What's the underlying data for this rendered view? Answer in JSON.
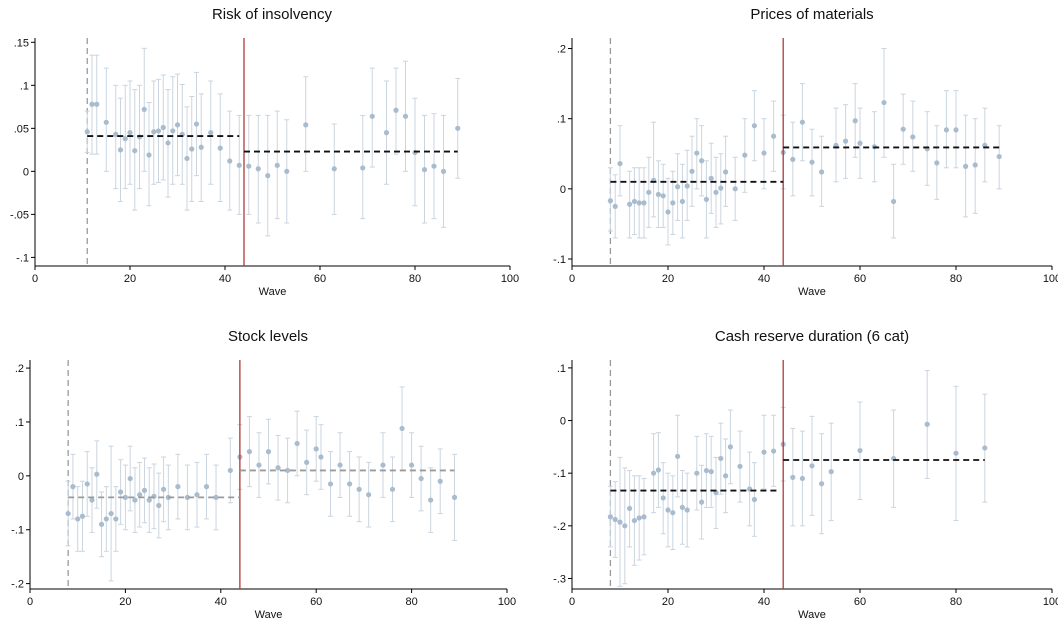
{
  "colors": {
    "point": "#a9bcce",
    "errorbar": "#cad5df",
    "vline_treat": "#b03a3a",
    "vline_start": "#9a9a9a",
    "mean_dark": "#111111",
    "mean_grey": "#9a9a9a"
  },
  "chart_data": [
    {
      "type": "scatter",
      "title": "Risk of insolvency",
      "xlabel": "Wave",
      "xlim": [
        0,
        100
      ],
      "ylim": [
        -0.11,
        0.155
      ],
      "xticks": [
        0,
        20,
        40,
        60,
        80,
        100
      ],
      "xtick_labels": [
        "0",
        "20",
        "40",
        "60",
        "80",
        "100"
      ],
      "yticks": [
        -0.1,
        -0.05,
        0,
        0.05,
        0.1,
        0.15
      ],
      "ytick_labels": [
        "-.1",
        "-.05",
        "0",
        ".05",
        ".1",
        ".15"
      ],
      "vline_start": 11,
      "vline_treat": 44,
      "mean_lines": [
        {
          "x0": 11,
          "x1": 43,
          "y": 0.041,
          "style": "dark"
        },
        {
          "x0": 44,
          "x1": 89,
          "y": 0.023,
          "style": "dark"
        }
      ],
      "points": [
        [
          11,
          0.046,
          0.022,
          0.07
        ],
        [
          12,
          0.078,
          0.02,
          0.135
        ],
        [
          13,
          0.078,
          0.02,
          0.135
        ],
        [
          15,
          0.057,
          0.0,
          0.12
        ],
        [
          17,
          0.043,
          -0.02,
          0.1
        ],
        [
          18,
          0.025,
          -0.035,
          0.085
        ],
        [
          19,
          0.038,
          -0.02,
          0.1
        ],
        [
          20,
          0.045,
          -0.015,
          0.105
        ],
        [
          21,
          0.024,
          -0.045,
          0.095
        ],
        [
          22,
          0.04,
          -0.02,
          0.1
        ],
        [
          23,
          0.072,
          0.0,
          0.143
        ],
        [
          24,
          0.019,
          -0.04,
          0.08
        ],
        [
          25,
          0.046,
          -0.015,
          0.105
        ],
        [
          26,
          0.047,
          -0.013,
          0.107
        ],
        [
          27,
          0.051,
          -0.01,
          0.112
        ],
        [
          28,
          0.033,
          -0.03,
          0.095
        ],
        [
          29,
          0.047,
          -0.015,
          0.11
        ],
        [
          30,
          0.054,
          -0.005,
          0.113
        ],
        [
          31,
          0.043,
          -0.015,
          0.101
        ],
        [
          32,
          0.015,
          -0.045,
          0.075
        ],
        [
          33,
          0.026,
          -0.035,
          0.087
        ],
        [
          34,
          0.055,
          -0.005,
          0.115
        ],
        [
          35,
          0.028,
          -0.035,
          0.09
        ],
        [
          37,
          0.045,
          -0.015,
          0.105
        ],
        [
          39,
          0.027,
          -0.035,
          0.09
        ],
        [
          41,
          0.012,
          -0.045,
          0.07
        ],
        [
          43,
          0.007,
          -0.05,
          0.065
        ],
        [
          45,
          0.006,
          -0.05,
          0.065
        ],
        [
          47,
          0.003,
          -0.06,
          0.065
        ],
        [
          49,
          -0.005,
          -0.075,
          0.065
        ],
        [
          51,
          0.007,
          -0.055,
          0.07
        ],
        [
          53,
          0.0,
          -0.06,
          0.06
        ],
        [
          57,
          0.054,
          0.0,
          0.11
        ],
        [
          63,
          0.003,
          -0.05,
          0.055
        ],
        [
          69,
          0.004,
          -0.055,
          0.065
        ],
        [
          71,
          0.064,
          0.005,
          0.12
        ],
        [
          74,
          0.045,
          -0.015,
          0.105
        ],
        [
          76,
          0.071,
          0.02,
          0.12
        ],
        [
          78,
          0.064,
          0.0,
          0.128
        ],
        [
          80,
          0.022,
          -0.04,
          0.085
        ],
        [
          82,
          0.002,
          -0.06,
          0.065
        ],
        [
          84,
          0.006,
          -0.055,
          0.067
        ],
        [
          86,
          0.0,
          -0.065,
          0.065
        ],
        [
          89,
          0.05,
          -0.008,
          0.108
        ]
      ]
    },
    {
      "type": "scatter",
      "title": "Prices of materials",
      "xlabel": "Wave",
      "xlim": [
        0,
        100
      ],
      "ylim": [
        -0.11,
        0.215
      ],
      "xticks": [
        0,
        20,
        40,
        60,
        80,
        100
      ],
      "xtick_labels": [
        "0",
        "20",
        "40",
        "60",
        "80",
        "100"
      ],
      "yticks": [
        -0.1,
        0,
        0.1,
        0.2
      ],
      "ytick_labels": [
        "-.1",
        "0",
        ".1",
        ".2"
      ],
      "vline_start": 8,
      "vline_treat": 44,
      "mean_lines": [
        {
          "x0": 8,
          "x1": 44,
          "y": 0.01,
          "style": "dark"
        },
        {
          "x0": 44,
          "x1": 89,
          "y": 0.059,
          "style": "dark"
        }
      ],
      "points": [
        [
          8,
          -0.017,
          -0.06,
          0.03
        ],
        [
          9,
          -0.025,
          -0.07,
          0.02
        ],
        [
          10,
          0.036,
          -0.01,
          0.09
        ],
        [
          12,
          -0.022,
          -0.07,
          0.025
        ],
        [
          13,
          -0.018,
          -0.065,
          0.03
        ],
        [
          14,
          -0.02,
          -0.07,
          0.03
        ],
        [
          15,
          -0.02,
          -0.07,
          0.03
        ],
        [
          16,
          -0.005,
          -0.055,
          0.045
        ],
        [
          17,
          0.012,
          -0.04,
          0.095
        ],
        [
          18,
          -0.008,
          -0.055,
          0.04
        ],
        [
          19,
          -0.01,
          -0.055,
          0.035
        ],
        [
          20,
          -0.033,
          -0.08,
          0.015
        ],
        [
          21,
          -0.02,
          -0.065,
          0.025
        ],
        [
          22,
          0.003,
          -0.045,
          0.05
        ],
        [
          23,
          -0.018,
          -0.07,
          0.035
        ],
        [
          24,
          0.004,
          -0.045,
          0.055
        ],
        [
          25,
          0.025,
          -0.025,
          0.075
        ],
        [
          26,
          0.051,
          0.0,
          0.1
        ],
        [
          27,
          0.04,
          -0.01,
          0.09
        ],
        [
          28,
          -0.015,
          -0.07,
          0.04
        ],
        [
          29,
          0.015,
          -0.035,
          0.065
        ],
        [
          30,
          -0.005,
          -0.055,
          0.045
        ],
        [
          31,
          0.001,
          -0.05,
          0.05
        ],
        [
          32,
          0.024,
          -0.025,
          0.075
        ],
        [
          34,
          0.0,
          -0.045,
          0.045
        ],
        [
          36,
          0.048,
          -0.005,
          0.1
        ],
        [
          38,
          0.09,
          0.04,
          0.14
        ],
        [
          40,
          0.051,
          0.0,
          0.1
        ],
        [
          42,
          0.075,
          0.025,
          0.125
        ],
        [
          44,
          0.052,
          0.0,
          0.105
        ],
        [
          46,
          0.042,
          -0.01,
          0.095
        ],
        [
          48,
          0.095,
          0.04,
          0.15
        ],
        [
          50,
          0.038,
          -0.01,
          0.085
        ],
        [
          52,
          0.024,
          -0.025,
          0.075
        ],
        [
          55,
          0.062,
          0.01,
          0.115
        ],
        [
          57,
          0.068,
          0.015,
          0.12
        ],
        [
          59,
          0.097,
          0.045,
          0.15
        ],
        [
          60,
          0.065,
          0.015,
          0.115
        ],
        [
          63,
          0.06,
          0.01,
          0.11
        ],
        [
          65,
          0.123,
          0.045,
          0.2
        ],
        [
          67,
          -0.018,
          -0.07,
          0.035
        ],
        [
          69,
          0.085,
          0.035,
          0.135
        ],
        [
          71,
          0.074,
          0.025,
          0.125
        ],
        [
          74,
          0.057,
          0.005,
          0.11
        ],
        [
          76,
          0.037,
          -0.015,
          0.09
        ],
        [
          78,
          0.084,
          0.03,
          0.14
        ],
        [
          80,
          0.084,
          0.03,
          0.14
        ],
        [
          82,
          0.032,
          -0.04,
          0.105
        ],
        [
          84,
          0.034,
          -0.035,
          0.1
        ],
        [
          86,
          0.062,
          0.01,
          0.115
        ],
        [
          89,
          0.046,
          0.0,
          0.09
        ]
      ]
    },
    {
      "type": "scatter",
      "title": "Stock levels",
      "xlabel": "Wave",
      "xlim": [
        0,
        100
      ],
      "ylim": [
        -0.21,
        0.215
      ],
      "xticks": [
        0,
        20,
        40,
        60,
        80,
        100
      ],
      "xtick_labels": [
        "0",
        "20",
        "40",
        "60",
        "80",
        "100"
      ],
      "yticks": [
        -0.2,
        -0.1,
        0,
        0.1,
        0.2
      ],
      "ytick_labels": [
        "-.2",
        "-.1",
        "0",
        ".1",
        ".2"
      ],
      "vline_start": 8,
      "vline_treat": 44,
      "mean_lines": [
        {
          "x0": 8,
          "x1": 44,
          "y": -0.04,
          "style": "grey"
        },
        {
          "x0": 44,
          "x1": 89,
          "y": 0.01,
          "style": "grey"
        }
      ],
      "points": [
        [
          8,
          -0.07,
          -0.13,
          -0.01
        ],
        [
          9,
          -0.02,
          -0.08,
          0.04
        ],
        [
          10,
          -0.08,
          -0.14,
          -0.02
        ],
        [
          11,
          -0.075,
          -0.14,
          -0.01
        ],
        [
          12,
          -0.015,
          -0.075,
          0.045
        ],
        [
          13,
          -0.045,
          -0.105,
          0.015
        ],
        [
          14,
          0.003,
          -0.06,
          0.065
        ],
        [
          15,
          -0.09,
          -0.15,
          -0.03
        ],
        [
          16,
          -0.08,
          -0.14,
          -0.02
        ],
        [
          17,
          -0.07,
          -0.195,
          0.055
        ],
        [
          18,
          -0.08,
          -0.14,
          -0.02
        ],
        [
          19,
          -0.03,
          -0.09,
          0.03
        ],
        [
          20,
          -0.04,
          -0.1,
          0.02
        ],
        [
          21,
          -0.005,
          -0.065,
          0.055
        ],
        [
          22,
          -0.045,
          -0.105,
          0.015
        ],
        [
          23,
          -0.035,
          -0.095,
          0.025
        ],
        [
          24,
          -0.027,
          -0.087,
          0.033
        ],
        [
          25,
          -0.045,
          -0.105,
          0.015
        ],
        [
          26,
          -0.038,
          -0.098,
          0.022
        ],
        [
          27,
          -0.055,
          -0.115,
          0.005
        ],
        [
          28,
          -0.025,
          -0.085,
          0.035
        ],
        [
          29,
          -0.04,
          -0.1,
          0.02
        ],
        [
          31,
          -0.02,
          -0.08,
          0.04
        ],
        [
          33,
          -0.04,
          -0.1,
          0.02
        ],
        [
          35,
          -0.035,
          -0.095,
          0.025
        ],
        [
          37,
          -0.02,
          -0.08,
          0.04
        ],
        [
          39,
          -0.04,
          -0.1,
          0.02
        ],
        [
          42,
          0.01,
          -0.05,
          0.07
        ],
        [
          44,
          0.035,
          -0.025,
          0.095
        ],
        [
          46,
          0.045,
          -0.02,
          0.11
        ],
        [
          48,
          0.02,
          -0.04,
          0.08
        ],
        [
          50,
          0.045,
          -0.015,
          0.105
        ],
        [
          52,
          0.015,
          -0.045,
          0.075
        ],
        [
          54,
          0.01,
          -0.05,
          0.07
        ],
        [
          56,
          0.06,
          0.0,
          0.12
        ],
        [
          58,
          0.025,
          -0.035,
          0.085
        ],
        [
          60,
          0.05,
          -0.01,
          0.11
        ],
        [
          61,
          0.035,
          -0.025,
          0.095
        ],
        [
          63,
          -0.015,
          -0.075,
          0.045
        ],
        [
          65,
          0.02,
          -0.04,
          0.08
        ],
        [
          67,
          -0.015,
          -0.075,
          0.045
        ],
        [
          69,
          -0.025,
          -0.085,
          0.035
        ],
        [
          71,
          -0.035,
          -0.095,
          0.025
        ],
        [
          74,
          0.02,
          -0.04,
          0.08
        ],
        [
          76,
          -0.025,
          -0.085,
          0.035
        ],
        [
          78,
          0.088,
          0.01,
          0.165
        ],
        [
          80,
          0.02,
          -0.04,
          0.08
        ],
        [
          82,
          -0.005,
          -0.065,
          0.055
        ],
        [
          84,
          -0.045,
          -0.105,
          0.015
        ],
        [
          86,
          -0.01,
          -0.07,
          0.05
        ],
        [
          89,
          -0.04,
          -0.12,
          0.04
        ]
      ]
    },
    {
      "type": "scatter",
      "title": "Cash reserve duration (6 cat)",
      "xlabel": "Wave",
      "xlim": [
        0,
        100
      ],
      "ylim": [
        -0.32,
        0.115
      ],
      "xticks": [
        0,
        20,
        40,
        60,
        80,
        100
      ],
      "xtick_labels": [
        "0",
        "20",
        "40",
        "60",
        "80",
        "100"
      ],
      "yticks": [
        -0.3,
        -0.2,
        -0.1,
        0,
        0.1
      ],
      "ytick_labels": [
        "-.3",
        "-.2",
        "-.1",
        "0",
        ".1"
      ],
      "vline_start": 8,
      "vline_treat": 44,
      "mean_lines": [
        {
          "x0": 8,
          "x1": 43,
          "y": -0.133,
          "style": "dark"
        },
        {
          "x0": 44,
          "x1": 86,
          "y": -0.075,
          "style": "dark"
        }
      ],
      "points": [
        [
          8,
          -0.183,
          -0.24,
          -0.125
        ],
        [
          9,
          -0.188,
          -0.26,
          -0.116
        ],
        [
          10,
          -0.193,
          -0.315,
          -0.07
        ],
        [
          11,
          -0.2,
          -0.31,
          -0.09
        ],
        [
          12,
          -0.167,
          -0.24,
          -0.095
        ],
        [
          13,
          -0.19,
          -0.275,
          -0.105
        ],
        [
          14,
          -0.185,
          -0.265,
          -0.105
        ],
        [
          15,
          -0.183,
          -0.255,
          -0.11
        ],
        [
          17,
          -0.1,
          -0.175,
          -0.025
        ],
        [
          18,
          -0.094,
          -0.165,
          -0.023
        ],
        [
          19,
          -0.147,
          -0.215,
          -0.08
        ],
        [
          20,
          -0.17,
          -0.24,
          -0.1
        ],
        [
          21,
          -0.175,
          -0.245,
          -0.105
        ],
        [
          22,
          -0.068,
          -0.145,
          0.01
        ],
        [
          23,
          -0.165,
          -0.235,
          -0.095
        ],
        [
          24,
          -0.17,
          -0.24,
          -0.1
        ],
        [
          26,
          -0.1,
          -0.17,
          -0.03
        ],
        [
          27,
          -0.155,
          -0.225,
          -0.085
        ],
        [
          28,
          -0.095,
          -0.165,
          -0.025
        ],
        [
          29,
          -0.097,
          -0.165,
          -0.03
        ],
        [
          30,
          -0.137,
          -0.205,
          -0.07
        ],
        [
          31,
          -0.072,
          -0.14,
          -0.005
        ],
        [
          32,
          -0.105,
          -0.175,
          -0.035
        ],
        [
          33,
          -0.05,
          -0.12,
          0.02
        ],
        [
          35,
          -0.087,
          -0.155,
          -0.02
        ],
        [
          37,
          -0.13,
          -0.2,
          -0.06
        ],
        [
          38,
          -0.15,
          -0.22,
          -0.08
        ],
        [
          40,
          -0.06,
          -0.13,
          0.01
        ],
        [
          42,
          -0.058,
          -0.125,
          0.01
        ],
        [
          44,
          -0.045,
          -0.115,
          0.025
        ],
        [
          46,
          -0.108,
          -0.2,
          -0.015
        ],
        [
          48,
          -0.11,
          -0.2,
          -0.02
        ],
        [
          50,
          -0.086,
          -0.18,
          0.008
        ],
        [
          52,
          -0.12,
          -0.215,
          -0.025
        ],
        [
          54,
          -0.097,
          -0.19,
          -0.005
        ],
        [
          60,
          -0.057,
          -0.15,
          0.035
        ],
        [
          67,
          -0.072,
          -0.165,
          0.02
        ],
        [
          74,
          -0.007,
          -0.11,
          0.095
        ],
        [
          80,
          -0.062,
          -0.19,
          0.065
        ],
        [
          86,
          -0.052,
          -0.155,
          0.05
        ]
      ]
    }
  ]
}
